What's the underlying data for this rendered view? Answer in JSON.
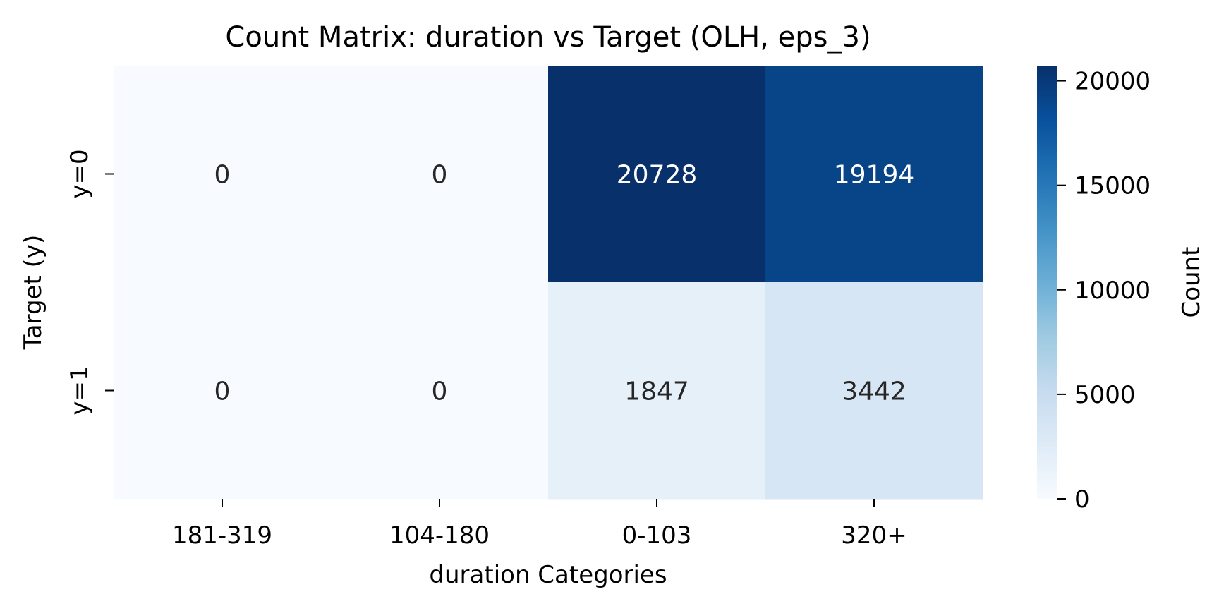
{
  "chart_data": {
    "type": "heatmap",
    "title": "Count Matrix: duration vs Target (OLH, eps_3)",
    "xlabel": "duration Categories",
    "ylabel": "Target (y)",
    "x_categories": [
      "181-319",
      "104-180",
      "0-103",
      "320+"
    ],
    "y_categories": [
      "y=0",
      "y=1"
    ],
    "values": [
      [
        0,
        0,
        20728,
        19194
      ],
      [
        0,
        0,
        1847,
        3442
      ]
    ],
    "colorbar": {
      "label": "Count",
      "range": [
        0,
        20728
      ],
      "ticks": [
        0,
        5000,
        10000,
        15000,
        20000
      ],
      "colormap": "Blues"
    },
    "colors": {
      "low": "#f7fbff",
      "high": "#08306b",
      "text_dark": "#262626",
      "text_light": "#ffffff"
    }
  }
}
